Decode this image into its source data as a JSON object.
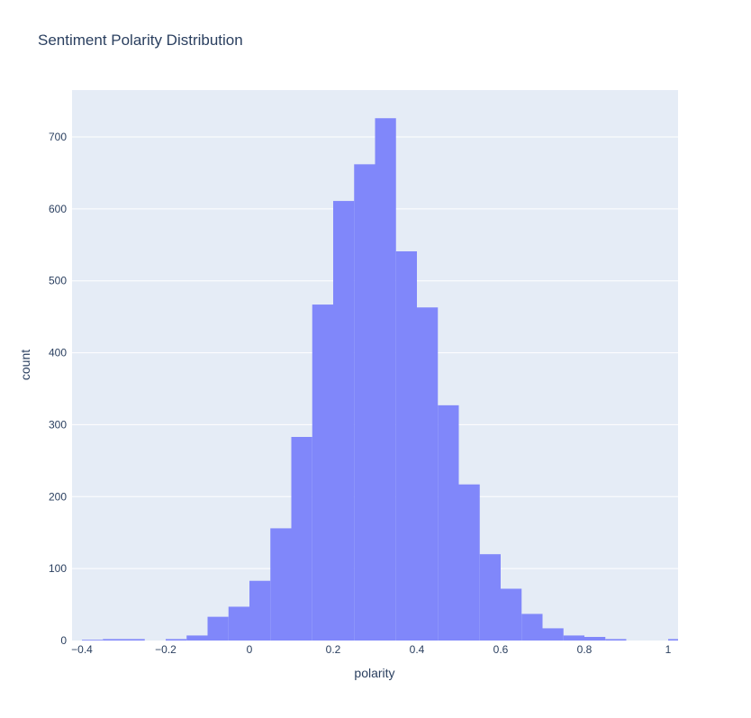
{
  "chart_data": {
    "type": "bar",
    "title": "Sentiment Polarity Distribution",
    "xlabel": "polarity",
    "ylabel": "count",
    "bin_width": 0.05,
    "xlim": [
      -0.4,
      1.0
    ],
    "ylim": [
      0,
      760
    ],
    "x_tick_labels": [
      "−0.4",
      "−0.2",
      "0",
      "0.2",
      "0.4",
      "0.6",
      "0.8",
      "1"
    ],
    "x_tick_values": [
      -0.4,
      -0.2,
      0,
      0.2,
      0.4,
      0.6,
      0.8,
      1.0
    ],
    "y_tick_labels": [
      "0",
      "100",
      "200",
      "300",
      "400",
      "500",
      "600",
      "700"
    ],
    "y_tick_values": [
      0,
      100,
      200,
      300,
      400,
      500,
      600,
      700
    ],
    "bins": [
      {
        "x0": -0.4,
        "count": 1
      },
      {
        "x0": -0.35,
        "count": 2
      },
      {
        "x0": -0.3,
        "count": 2
      },
      {
        "x0": -0.25,
        "count": 0
      },
      {
        "x0": -0.2,
        "count": 2
      },
      {
        "x0": -0.15,
        "count": 7
      },
      {
        "x0": -0.1,
        "count": 33
      },
      {
        "x0": -0.05,
        "count": 47
      },
      {
        "x0": 0.0,
        "count": 83
      },
      {
        "x0": 0.05,
        "count": 156
      },
      {
        "x0": 0.1,
        "count": 283
      },
      {
        "x0": 0.15,
        "count": 467
      },
      {
        "x0": 0.2,
        "count": 611
      },
      {
        "x0": 0.25,
        "count": 662
      },
      {
        "x0": 0.3,
        "count": 726
      },
      {
        "x0": 0.35,
        "count": 541
      },
      {
        "x0": 0.4,
        "count": 463
      },
      {
        "x0": 0.45,
        "count": 327
      },
      {
        "x0": 0.5,
        "count": 217
      },
      {
        "x0": 0.55,
        "count": 120
      },
      {
        "x0": 0.6,
        "count": 72
      },
      {
        "x0": 0.65,
        "count": 37
      },
      {
        "x0": 0.7,
        "count": 17
      },
      {
        "x0": 0.75,
        "count": 7
      },
      {
        "x0": 0.8,
        "count": 5
      },
      {
        "x0": 0.85,
        "count": 2
      },
      {
        "x0": 0.9,
        "count": 0
      },
      {
        "x0": 0.95,
        "count": 0
      },
      {
        "x0": 1.0,
        "count": 2
      }
    ],
    "grid": true,
    "legend": "none",
    "colors": {
      "bar": "#8087fa",
      "plot_background": "#e5ecf6",
      "gridline": "#ffffff",
      "text": "#2a3f5f"
    }
  }
}
